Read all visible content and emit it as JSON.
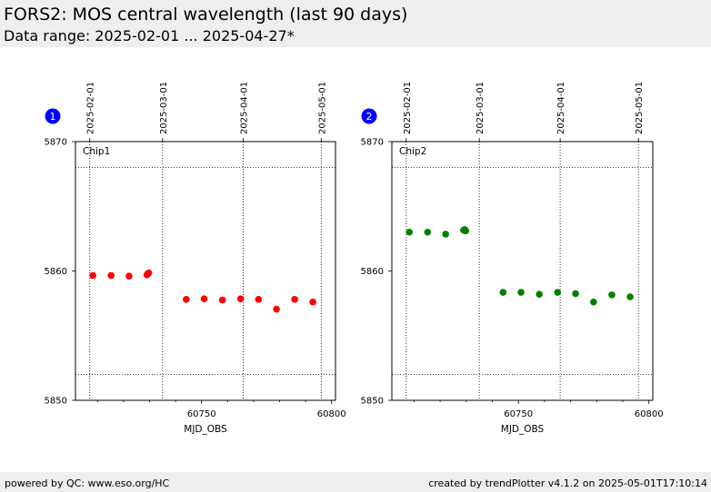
{
  "header": {
    "title": "FORS2: MOS central wavelength (last 90 days)",
    "subtitle": "Data range: 2025-02-01 ... 2025-04-27*"
  },
  "footer": {
    "left": "powered by QC: www.eso.org/HC",
    "right": "created by trendPlotter v4.1.2 on 2025-05-01T17:10:14"
  },
  "chart_data": [
    {
      "type": "scatter",
      "badge": "1",
      "label": "Chip1",
      "color": "#ff0000",
      "xlabel": "MJD_OBS",
      "xlim": [
        60701.5,
        60801.5
      ],
      "ylim": [
        5850,
        5870
      ],
      "x_ticks": [
        60750,
        60800
      ],
      "y_ticks": [
        5850,
        5860,
        5870
      ],
      "top_date_ticks": [
        {
          "x": 60707,
          "label": "2025-02-01"
        },
        {
          "x": 60735,
          "label": "2025-03-01"
        },
        {
          "x": 60766,
          "label": "2025-04-01"
        },
        {
          "x": 60796,
          "label": "2025-05-01"
        }
      ],
      "hlines": [
        5868,
        5852
      ],
      "points": [
        {
          "x": 60708.2,
          "y": 5859.65
        },
        {
          "x": 60715.2,
          "y": 5859.65
        },
        {
          "x": 60722.1,
          "y": 5859.6
        },
        {
          "x": 60729.0,
          "y": 5859.7
        },
        {
          "x": 60729.4,
          "y": 5859.8
        },
        {
          "x": 60729.7,
          "y": 5859.85
        },
        {
          "x": 60744.1,
          "y": 5857.8
        },
        {
          "x": 60751.0,
          "y": 5857.85
        },
        {
          "x": 60758.0,
          "y": 5857.75
        },
        {
          "x": 60765.0,
          "y": 5857.85
        },
        {
          "x": 60771.9,
          "y": 5857.8
        },
        {
          "x": 60778.8,
          "y": 5857.05
        },
        {
          "x": 60785.8,
          "y": 5857.8
        },
        {
          "x": 60792.8,
          "y": 5857.6
        }
      ]
    },
    {
      "type": "scatter",
      "badge": "2",
      "label": "Chip2",
      "color": "#008000",
      "xlabel": "MJD_OBS",
      "xlim": [
        60701.5,
        60801.5
      ],
      "ylim": [
        5850,
        5870
      ],
      "x_ticks": [
        60750,
        60800
      ],
      "y_ticks": [
        5850,
        5860,
        5870
      ],
      "top_date_ticks": [
        {
          "x": 60707,
          "label": "2025-02-01"
        },
        {
          "x": 60735,
          "label": "2025-03-01"
        },
        {
          "x": 60766,
          "label": "2025-04-01"
        },
        {
          "x": 60796,
          "label": "2025-05-01"
        }
      ],
      "hlines": [
        5868,
        5852
      ],
      "points": [
        {
          "x": 60708.2,
          "y": 5863.0
        },
        {
          "x": 60715.2,
          "y": 5863.0
        },
        {
          "x": 60722.1,
          "y": 5862.85
        },
        {
          "x": 60729.0,
          "y": 5863.15
        },
        {
          "x": 60729.4,
          "y": 5863.2
        },
        {
          "x": 60729.8,
          "y": 5863.1
        },
        {
          "x": 60744.1,
          "y": 5858.35
        },
        {
          "x": 60751.0,
          "y": 5858.35
        },
        {
          "x": 60758.0,
          "y": 5858.2
        },
        {
          "x": 60765.0,
          "y": 5858.35
        },
        {
          "x": 60771.9,
          "y": 5858.25
        },
        {
          "x": 60778.8,
          "y": 5857.6
        },
        {
          "x": 60785.8,
          "y": 5858.15
        },
        {
          "x": 60792.8,
          "y": 5858.0
        }
      ]
    }
  ]
}
